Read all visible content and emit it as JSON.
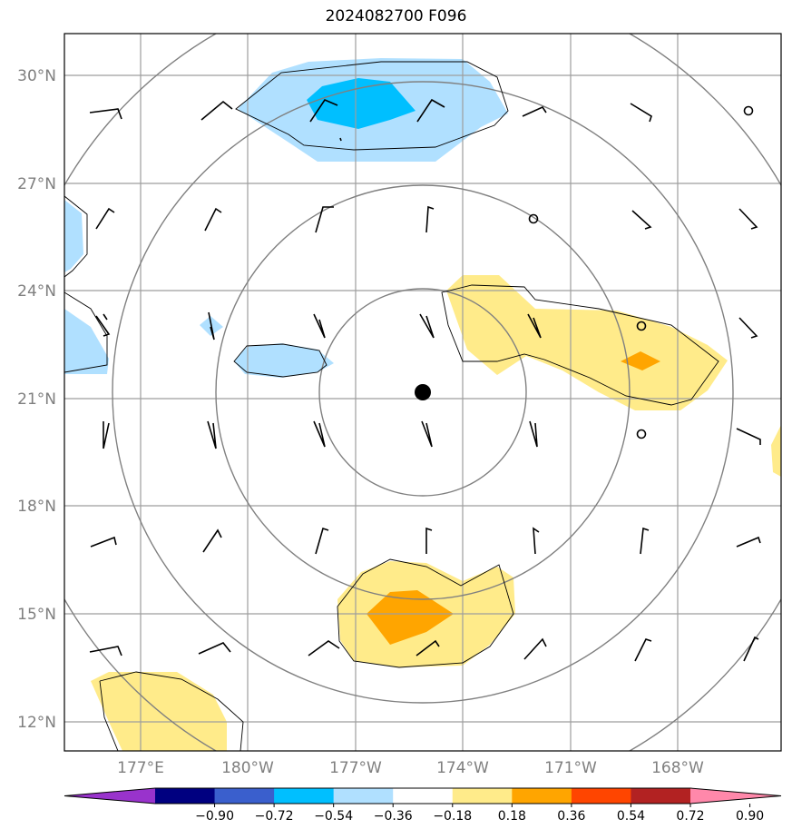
{
  "title": "2024082700 F096",
  "lat_labels": [
    "30°N",
    "27°N",
    "24°N",
    "21°N",
    "18°N",
    "15°N",
    "12°N"
  ],
  "lon_labels": [
    "177°E",
    "180°W",
    "177°W",
    "174°W",
    "171°W",
    "168°W"
  ],
  "colorbar": {
    "labels": [
      "−0.90",
      "−0.72",
      "−0.54",
      "−0.36",
      "−0.18",
      "0.18",
      "0.36",
      "0.54",
      "0.72",
      "0.90"
    ],
    "colors": [
      "#9933cc",
      "#000080",
      "#3a5fcd",
      "#00bfff",
      "#b0e0ff",
      "#ffffff",
      "#ffeb8a",
      "#ffa500",
      "#ff4500",
      "#b22222",
      "#ff88aa"
    ]
  },
  "field_colors": {
    "light_blue": "#b0e0ff",
    "blue": "#00bfff",
    "light_yellow": "#ffeb8a",
    "orange": "#ffa500"
  },
  "center_marker": {
    "lat": 21.2,
    "lon": -174.5
  }
}
